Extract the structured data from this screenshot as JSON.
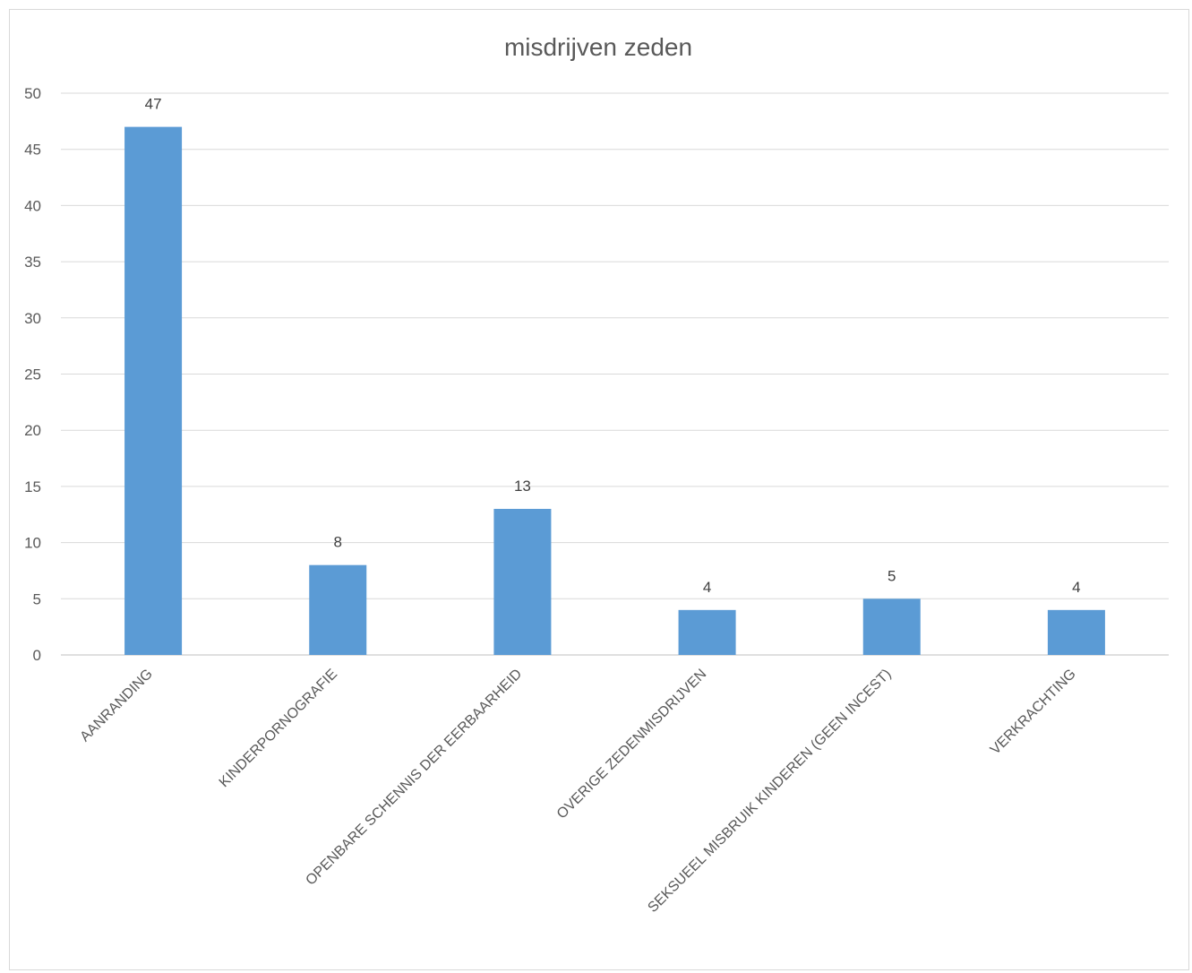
{
  "chart_data": {
    "type": "bar",
    "title": "misdrijven zeden",
    "categories": [
      "AANRANDING",
      "KINDERPORNOGRAFIE",
      "OPENBARE SCHENNIS DER EERBAARHEID",
      "OVERIGE ZEDENMISDRIJVEN",
      "SEKSUEEL MISBRUIK KINDEREN (GEEN INCEST)",
      "VERKRACHTING"
    ],
    "values": [
      47,
      8,
      13,
      4,
      5,
      4
    ],
    "data_labels": [
      "47",
      "8",
      "13",
      "4",
      "5",
      "4"
    ],
    "ylim": [
      0,
      50
    ],
    "yticks": [
      0,
      5,
      10,
      15,
      20,
      25,
      30,
      35,
      40,
      45,
      50
    ],
    "ytick_labels": [
      "0",
      "5",
      "10",
      "15",
      "20",
      "25",
      "30",
      "35",
      "40",
      "45",
      "50"
    ],
    "grid": true,
    "legend": "none",
    "bar_color": "#5b9bd5",
    "grid_color": "#d9d9d9"
  }
}
